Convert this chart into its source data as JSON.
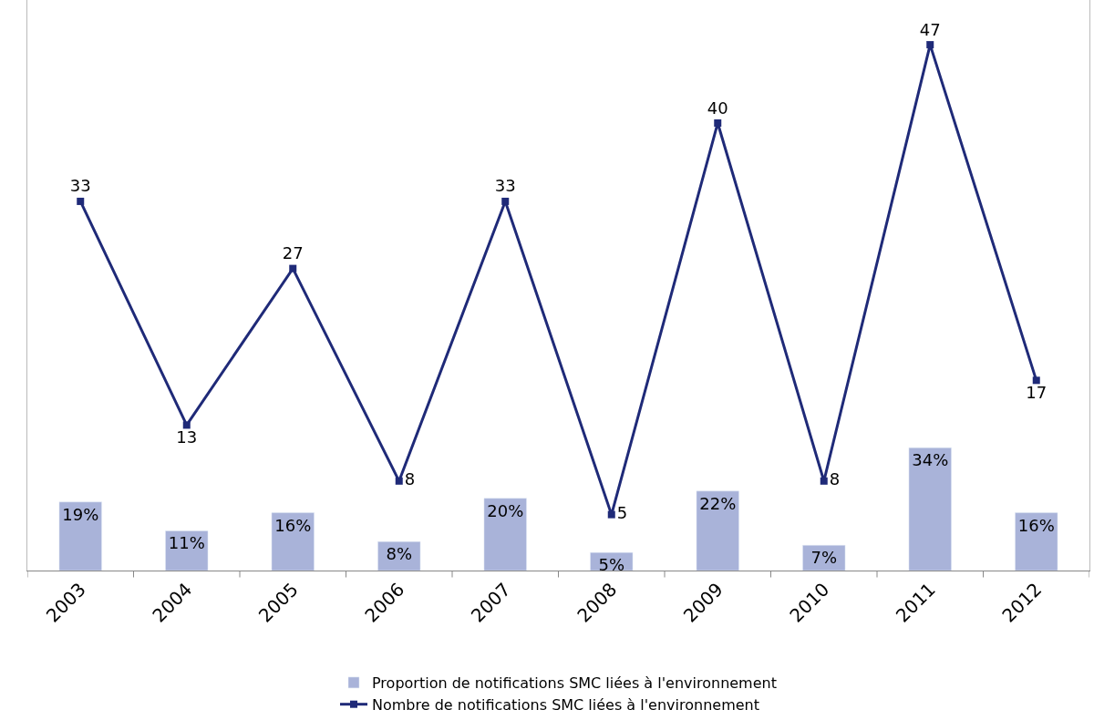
{
  "chart_data": {
    "type": "bar",
    "categories": [
      "2003",
      "2004",
      "2005",
      "2006",
      "2007",
      "2008",
      "2009",
      "2010",
      "2011",
      "2012"
    ],
    "ylim": [
      0,
      158
    ],
    "y2lim": [
      0,
      51
    ],
    "tick_labels": "x",
    "legend": "bottom",
    "marker": "square",
    "series": [
      {
        "name": "Proportion de notifications SMC liées à l'environnement",
        "color": "#a9b3d9",
        "values": [
          19,
          11,
          16,
          8,
          20,
          5,
          22,
          7,
          34,
          16
        ],
        "value_labels": [
          "19%",
          "11%",
          "16%",
          "8%",
          "20%",
          "5%",
          "22%",
          "7%",
          "34%",
          "16%"
        ]
      },
      {
        "name": "Nombre de notifications SMC liées à l'environnement",
        "type": "line",
        "axis": "y2",
        "color": "#1f2a78",
        "values": [
          33,
          13,
          27,
          8,
          33,
          5,
          40,
          8,
          47,
          17
        ],
        "value_labels": [
          "33",
          "13",
          "27",
          "8",
          "33",
          "5",
          "40",
          "8",
          "47",
          "17"
        ]
      }
    ]
  }
}
